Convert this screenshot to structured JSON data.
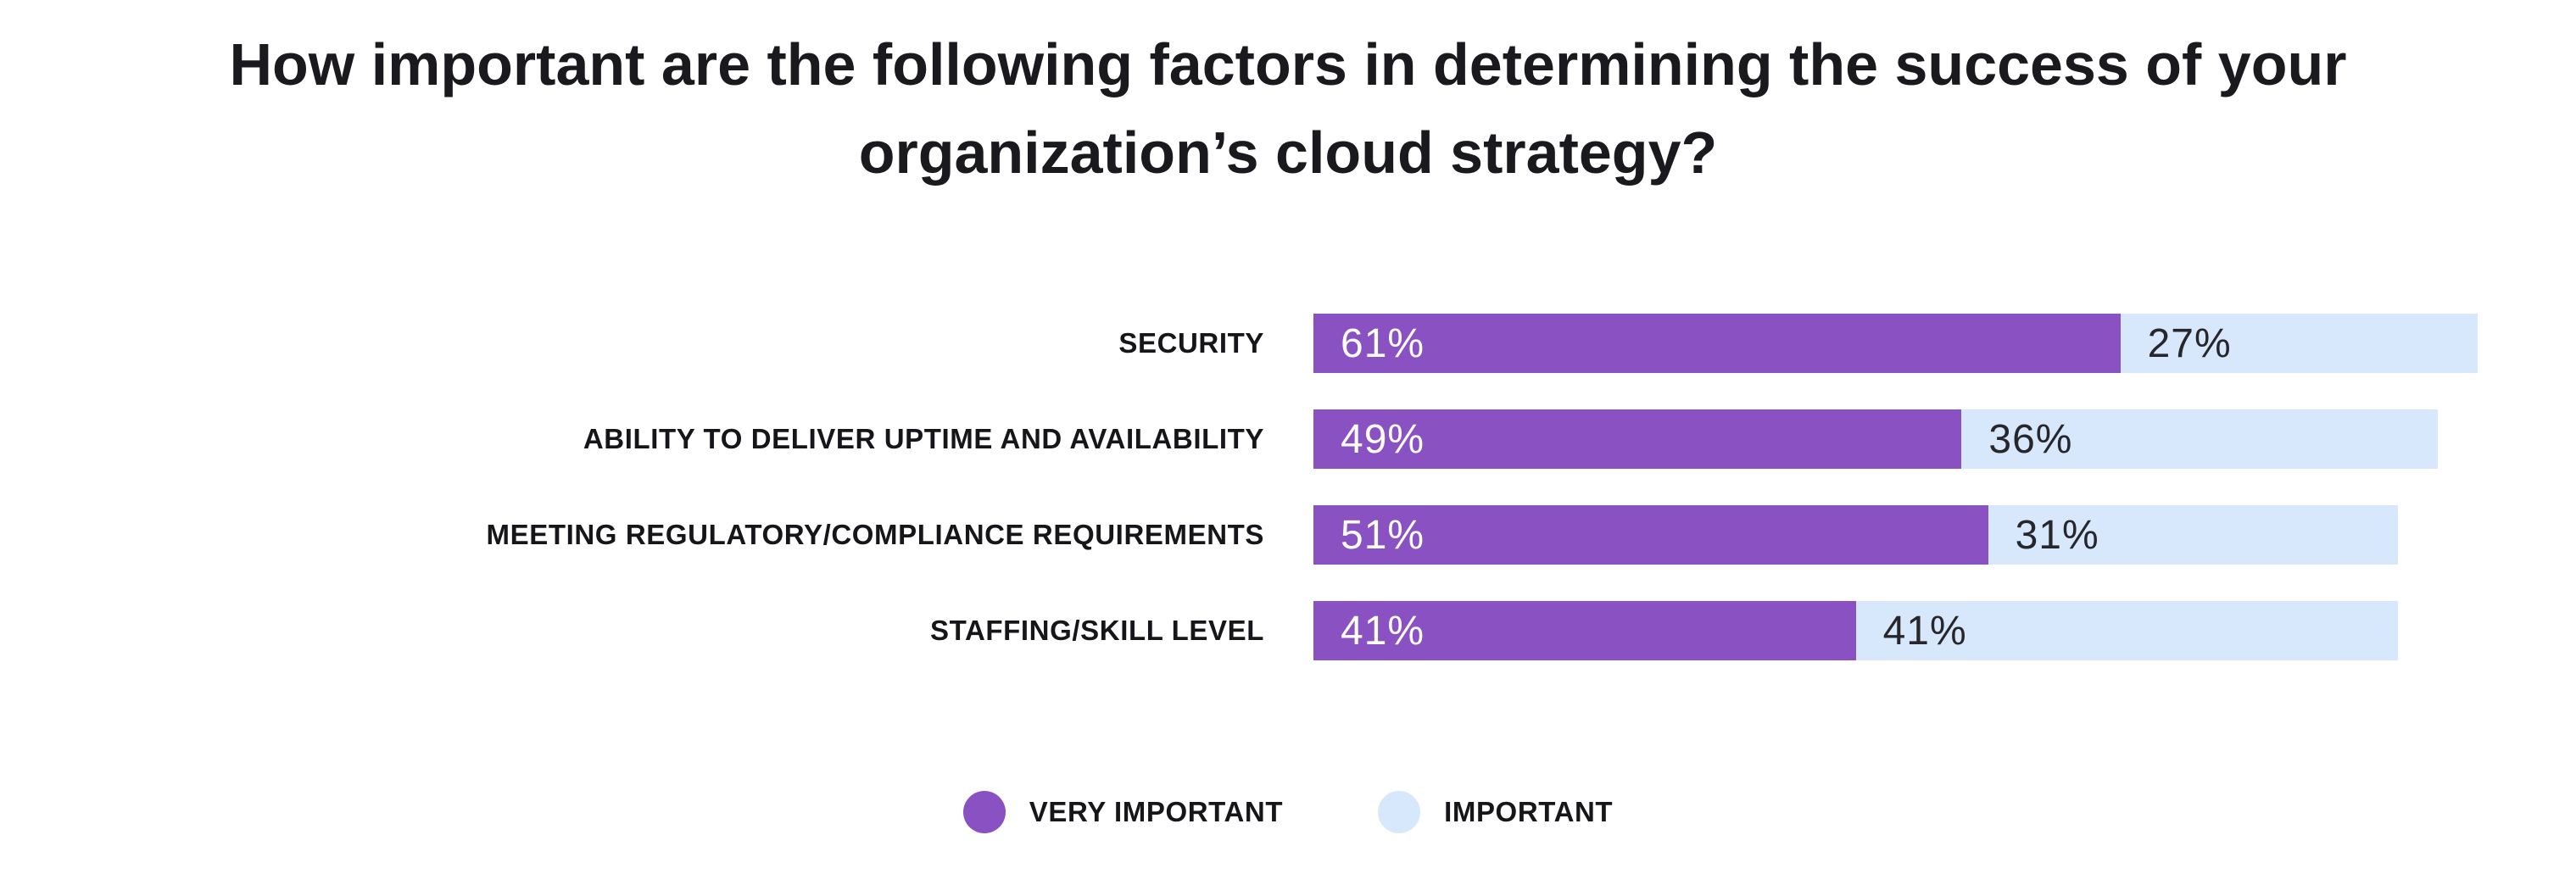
{
  "page": {
    "background": "#FFFFFF",
    "title_color": "#1A1A1E",
    "label_color": "#16161A"
  },
  "chart_data": {
    "type": "bar",
    "orientation": "horizontal",
    "stacked": true,
    "grid": false,
    "title": "How important are the following factors in determining the success of your organization’s cloud strategy?",
    "title_lines": [
      "How important are the following factors in determining the success of your",
      "organization’s cloud strategy?"
    ],
    "categories": [
      "SECURITY",
      "ABILITY TO DELIVER UPTIME AND AVAILABILITY",
      "MEETING REGULATORY/COMPLIANCE REQUIREMENTS",
      "STAFFING/SKILL LEVEL"
    ],
    "series": [
      {
        "name": "VERY IMPORTANT",
        "color": "#8A51C2",
        "text_color": "#FFFFFF",
        "values": [
          61,
          49,
          51,
          41
        ]
      },
      {
        "name": "IMPORTANT",
        "color": "#D7E8FC",
        "text_color": "#26262B",
        "values": [
          27,
          36,
          31,
          41
        ]
      }
    ],
    "value_suffix": "%",
    "xlim": [
      0,
      100
    ],
    "legend_position": "bottom"
  }
}
